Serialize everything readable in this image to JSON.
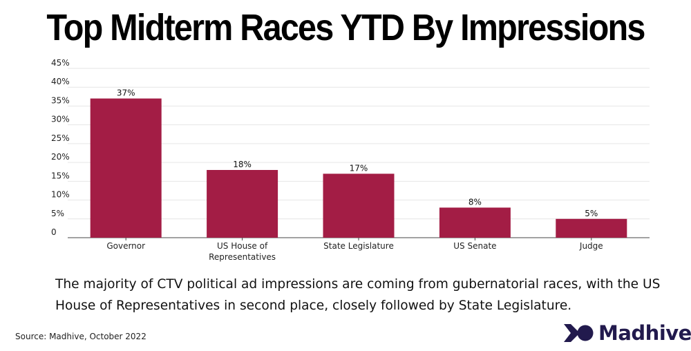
{
  "title": "Top Midterm Races YTD By Impressions",
  "caption": "The majority of CTV political ad impressions are coming from gubernatorial races, with the US House of Representatives in second place, closely followed by State Legislature.",
  "source": "Source: Madhive, October 2022",
  "logo": {
    "text": "Madhive",
    "color": "#221a4d"
  },
  "colors": {
    "bar": "#a31d45",
    "grid": "#e6e6e6",
    "axis": "#444444"
  },
  "chart_data": {
    "type": "bar",
    "categories": [
      [
        "Governor"
      ],
      [
        "US House of",
        "Representatives"
      ],
      [
        "State Legislature"
      ],
      [
        "US Senate"
      ],
      [
        "Judge"
      ]
    ],
    "values": [
      37,
      18,
      17,
      8,
      5
    ],
    "value_labels": [
      "37%",
      "18%",
      "17%",
      "8%",
      "5%"
    ],
    "yticks": [
      0,
      5,
      10,
      15,
      20,
      25,
      30,
      35,
      40,
      45
    ],
    "ytick_labels": [
      "0",
      "5%",
      "10%",
      "15%",
      "20%",
      "25%",
      "30%",
      "35%",
      "40%",
      "45%"
    ],
    "ylim": [
      0,
      45
    ],
    "grid": true,
    "legend": "none"
  }
}
